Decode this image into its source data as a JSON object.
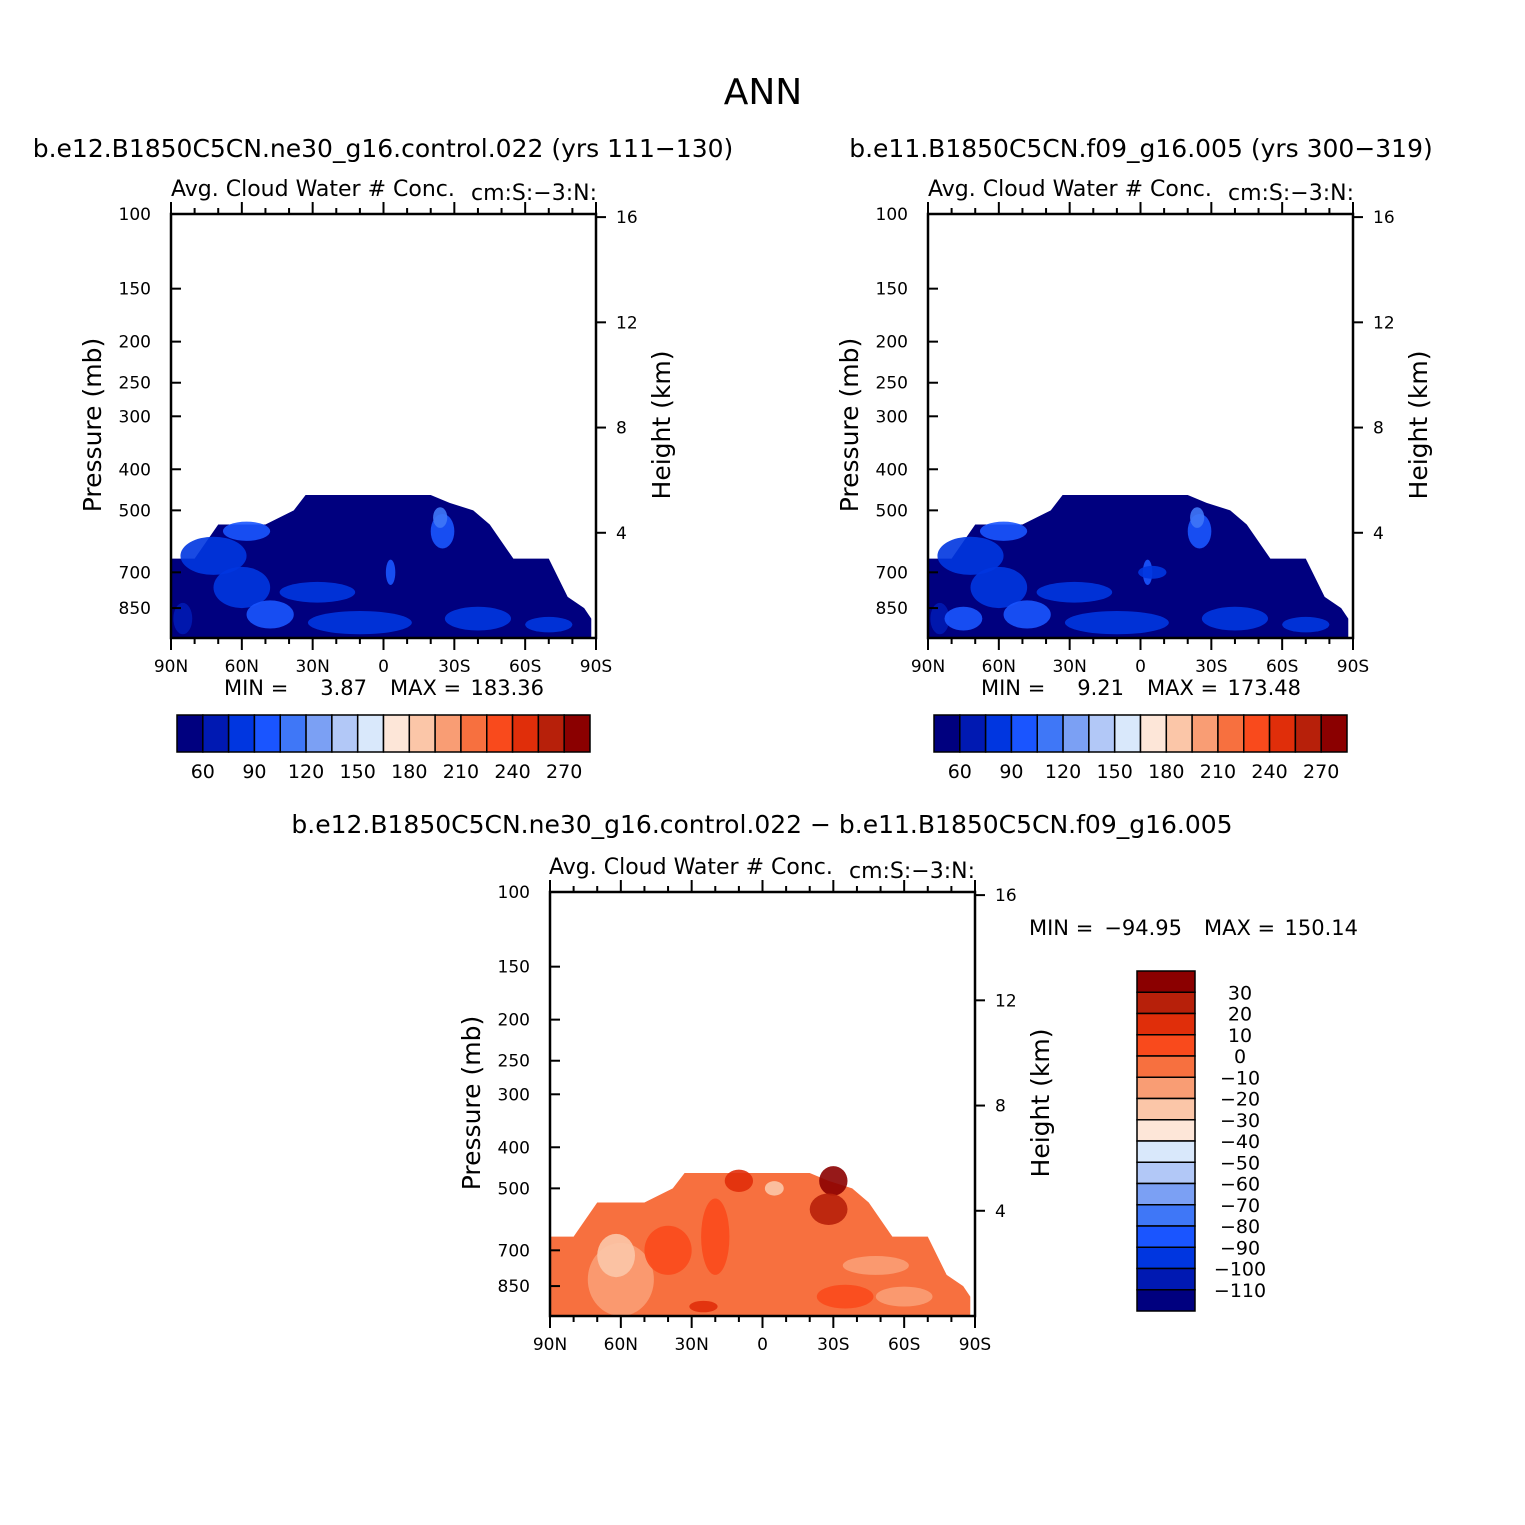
{
  "page_title": "ANN",
  "colors": {
    "top_scale": [
      "#00007f",
      "#0019b2",
      "#0036e0",
      "#1a55ff",
      "#3f77f7",
      "#7ba0f4",
      "#b2c8f7",
      "#d9e8fb",
      "#fde6d8",
      "#fbc6a8",
      "#f99d74",
      "#f7703f",
      "#f94a1c",
      "#e02e0a",
      "#b7200a",
      "#8b0000"
    ],
    "diff_scale": [
      "#00007f",
      "#0019b2",
      "#0036e0",
      "#1a55ff",
      "#3f77f7",
      "#7ba0f4",
      "#b2c8f7",
      "#d9e8fb",
      "#fde6d8",
      "#fbc6a8",
      "#f99d74",
      "#f7703f",
      "#f94a1c",
      "#e02e0a",
      "#b7200a",
      "#8b0000"
    ]
  },
  "chart_data": [
    {
      "type": "heatmap",
      "panel": "top-left",
      "title": "b.e12.B1850C5CN.ne30_g16.control.022 (yrs 111−130)",
      "subtitle_left": "Avg. Cloud Water # Conc.",
      "subtitle_right": "cm:S:−3:N:",
      "ylabel": "Pressure (mb)",
      "ylabel_right": "Height (km)",
      "x_ticks": [
        "90N",
        "60N",
        "30N",
        "0",
        "30S",
        "60S",
        "90S"
      ],
      "y_ticks": [
        "100",
        "150",
        "200",
        "250",
        "300",
        "400",
        "500",
        "700",
        "850"
      ],
      "y_ticks_right": [
        "16",
        "12",
        "8",
        "4"
      ],
      "xlim": [
        90,
        -90
      ],
      "ylim": [
        100,
        1000
      ],
      "y_scale": "log",
      "stats": {
        "min_label": "MIN =",
        "min": "3.87",
        "max_label": "MAX =",
        "max": "183.36"
      },
      "colorbar": {
        "orientation": "horizontal",
        "labels": [
          "60",
          "90",
          "120",
          "150",
          "180",
          "210",
          "240",
          "270"
        ]
      },
      "field_upper_edge": [
        [
          90,
          650
        ],
        [
          80,
          650
        ],
        [
          70,
          540
        ],
        [
          50,
          540
        ],
        [
          38,
          500
        ],
        [
          33,
          460
        ],
        [
          25,
          460
        ],
        [
          15,
          460
        ],
        [
          8,
          460
        ],
        [
          0,
          460
        ],
        [
          -10,
          460
        ],
        [
          -20,
          460
        ],
        [
          -28,
          480
        ],
        [
          -38,
          500
        ],
        [
          -45,
          540
        ],
        [
          -55,
          650
        ],
        [
          -70,
          650
        ],
        [
          -78,
          800
        ],
        [
          -85,
          850
        ],
        [
          -88,
          900
        ]
      ]
    },
    {
      "type": "heatmap",
      "panel": "top-right",
      "title": "b.e11.B1850C5CN.f09_g16.005 (yrs 300−319)",
      "subtitle_left": "Avg. Cloud Water # Conc.",
      "subtitle_right": "cm:S:−3:N:",
      "ylabel": "Pressure (mb)",
      "ylabel_right": "Height (km)",
      "x_ticks": [
        "90N",
        "60N",
        "30N",
        "0",
        "30S",
        "60S",
        "90S"
      ],
      "y_ticks": [
        "100",
        "150",
        "200",
        "250",
        "300",
        "400",
        "500",
        "700",
        "850"
      ],
      "y_ticks_right": [
        "16",
        "12",
        "8",
        "4"
      ],
      "xlim": [
        90,
        -90
      ],
      "ylim": [
        100,
        1000
      ],
      "y_scale": "log",
      "stats": {
        "min_label": "MIN =",
        "min": "9.21",
        "max_label": "MAX =",
        "max": "173.48"
      },
      "colorbar": {
        "orientation": "horizontal",
        "labels": [
          "60",
          "90",
          "120",
          "150",
          "180",
          "210",
          "240",
          "270"
        ]
      },
      "field_upper_edge": [
        [
          90,
          650
        ],
        [
          80,
          650
        ],
        [
          70,
          540
        ],
        [
          50,
          540
        ],
        [
          38,
          500
        ],
        [
          33,
          460
        ],
        [
          25,
          460
        ],
        [
          15,
          460
        ],
        [
          8,
          460
        ],
        [
          0,
          460
        ],
        [
          -10,
          460
        ],
        [
          -20,
          460
        ],
        [
          -28,
          480
        ],
        [
          -38,
          500
        ],
        [
          -45,
          540
        ],
        [
          -55,
          650
        ],
        [
          -70,
          650
        ],
        [
          -78,
          800
        ],
        [
          -85,
          850
        ],
        [
          -88,
          900
        ]
      ]
    },
    {
      "type": "heatmap",
      "panel": "bottom-difference",
      "title": "b.e12.B1850C5CN.ne30_g16.control.022 − b.e11.B1850C5CN.f09_g16.005",
      "subtitle_left": "Avg. Cloud Water # Conc.",
      "subtitle_right": "cm:S:−3:N:",
      "ylabel": "Pressure (mb)",
      "ylabel_right": "Height (km)",
      "x_ticks": [
        "90N",
        "60N",
        "30N",
        "0",
        "30S",
        "60S",
        "90S"
      ],
      "y_ticks": [
        "100",
        "150",
        "200",
        "250",
        "300",
        "400",
        "500",
        "700",
        "850"
      ],
      "y_ticks_right": [
        "16",
        "12",
        "8",
        "4"
      ],
      "xlim": [
        90,
        -90
      ],
      "ylim": [
        100,
        1000
      ],
      "y_scale": "log",
      "stats": {
        "min_label": "MIN =",
        "min": "−94.95",
        "max_label": "MAX =",
        "max": "150.14"
      },
      "colorbar": {
        "orientation": "vertical",
        "labels": [
          "30",
          "20",
          "10",
          "0",
          "−10",
          "−20",
          "−30",
          "−40",
          "−50",
          "−60",
          "−70",
          "−80",
          "−90",
          "−100",
          "−110"
        ]
      },
      "field_upper_edge": [
        [
          90,
          650
        ],
        [
          80,
          650
        ],
        [
          70,
          540
        ],
        [
          50,
          540
        ],
        [
          38,
          500
        ],
        [
          33,
          460
        ],
        [
          25,
          460
        ],
        [
          15,
          460
        ],
        [
          8,
          460
        ],
        [
          0,
          460
        ],
        [
          -10,
          460
        ],
        [
          -20,
          460
        ],
        [
          -28,
          480
        ],
        [
          -38,
          500
        ],
        [
          -45,
          540
        ],
        [
          -55,
          650
        ],
        [
          -70,
          650
        ],
        [
          -78,
          800
        ],
        [
          -85,
          850
        ],
        [
          -88,
          900
        ]
      ]
    }
  ]
}
